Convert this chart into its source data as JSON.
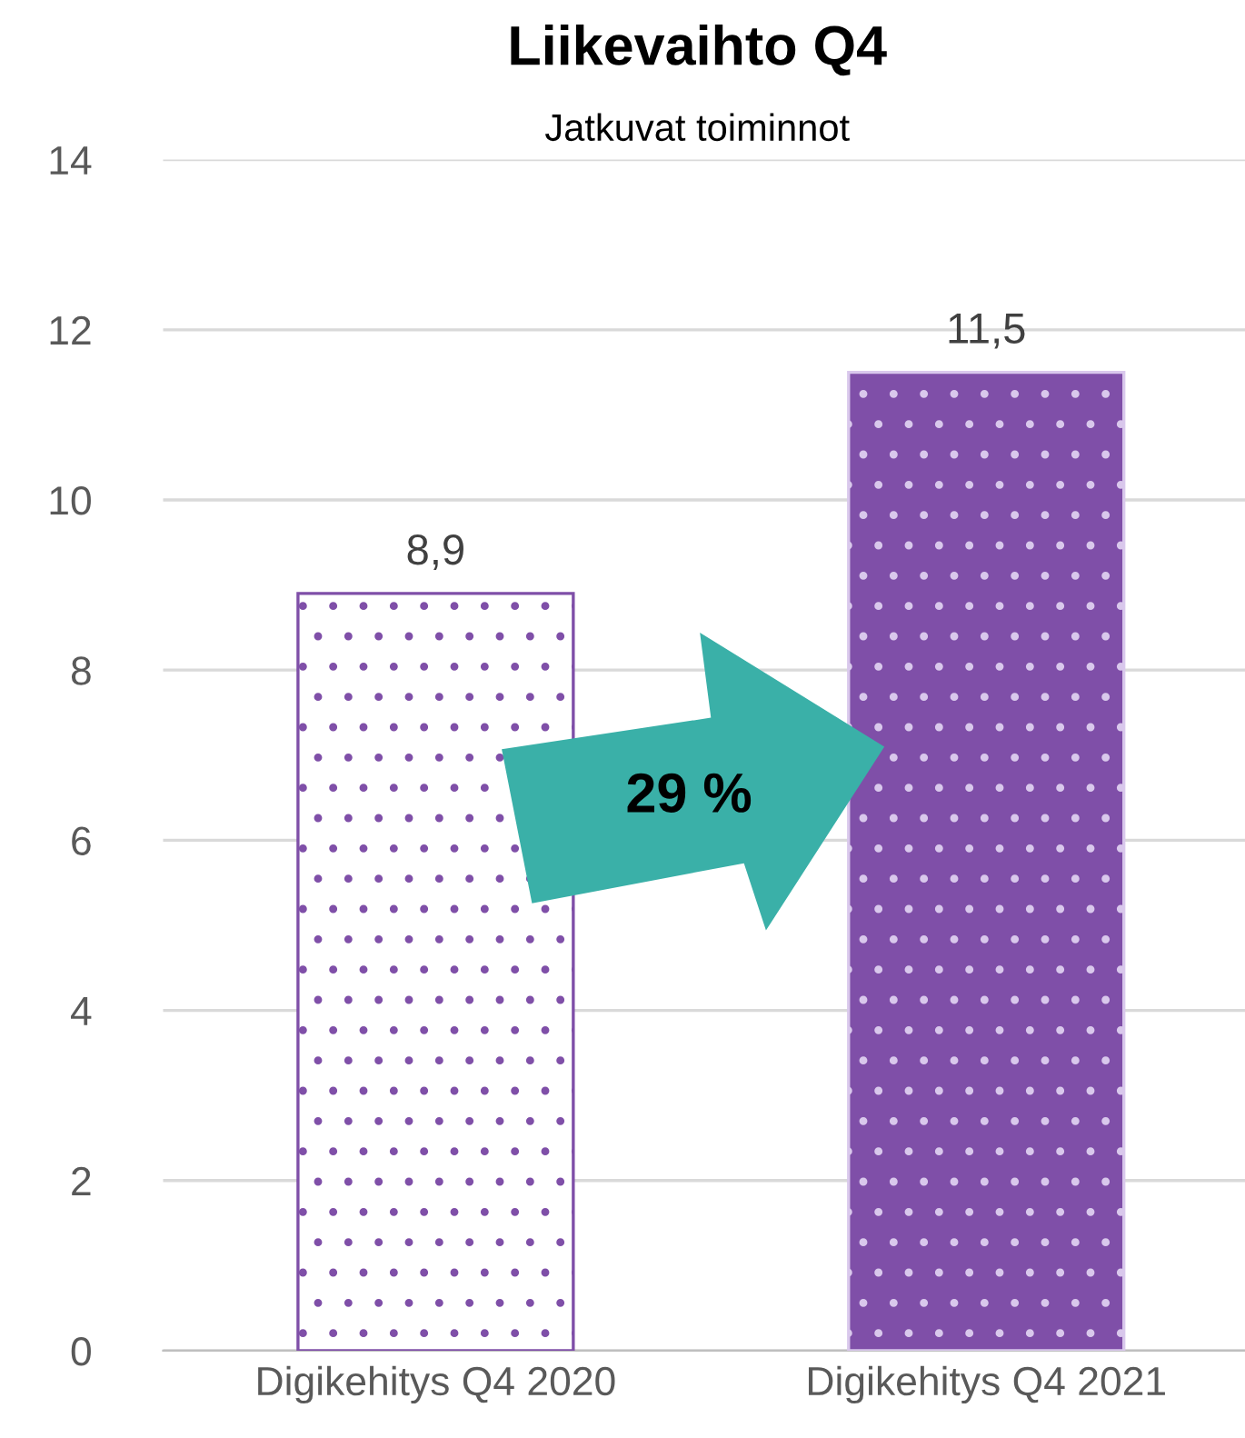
{
  "chart_data": {
    "type": "bar",
    "title": "Liikevaihto Q4",
    "subtitle": "Jatkuvat toiminnot",
    "categories": [
      "Digikehitys Q4 2020",
      "Digikehitys Q4 2021"
    ],
    "values": [
      8.9,
      11.5
    ],
    "colors": [
      "#ffffff",
      "#7f4fa8"
    ],
    "value_labels": [
      "8,9",
      "11,5"
    ],
    "annotations": [
      "29 %"
    ],
    "ylim": [
      0,
      14
    ],
    "yticks": [
      0,
      2,
      4,
      6,
      8,
      10,
      12,
      14
    ],
    "grid": "y"
  }
}
